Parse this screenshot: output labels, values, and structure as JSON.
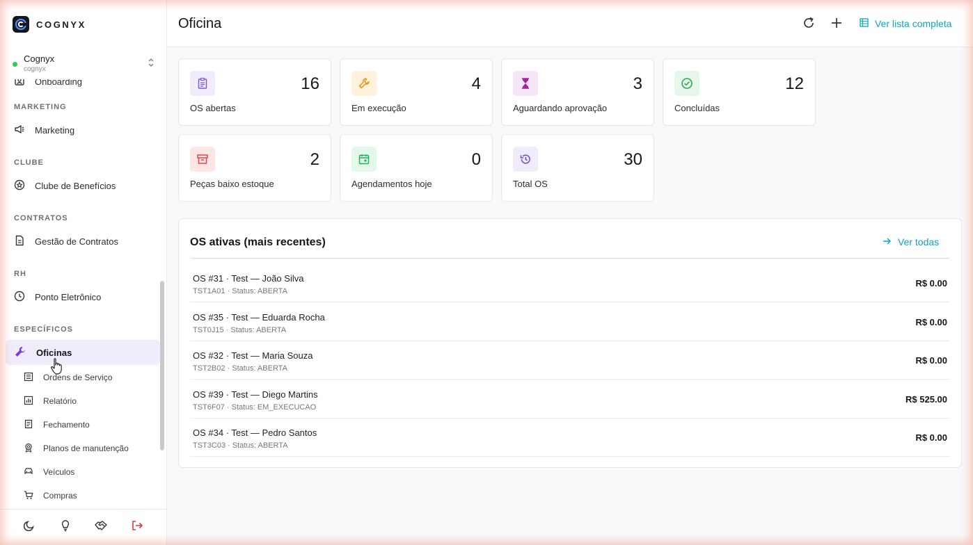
{
  "brand": {
    "name": "COGNYX"
  },
  "workspace": {
    "name": "Cognyx",
    "slug": "cognyx",
    "status_color": "#34c759"
  },
  "sidebar": {
    "partial_item": {
      "label": "Onboarding",
      "icon": "onboarding-icon"
    },
    "sections": [
      {
        "label": "MARKETING",
        "items": [
          {
            "label": "Marketing",
            "icon": "megaphone-icon"
          }
        ]
      },
      {
        "label": "CLUBE",
        "items": [
          {
            "label": "Clube de Benefícios",
            "icon": "star-badge-icon"
          }
        ]
      },
      {
        "label": "CONTRATOS",
        "items": [
          {
            "label": "Gestão de Contratos",
            "icon": "document-icon"
          }
        ]
      },
      {
        "label": "RH",
        "items": [
          {
            "label": "Ponto Eletrônico",
            "icon": "clock-icon"
          }
        ]
      },
      {
        "label": "ESPECÍFICOS",
        "items": [
          {
            "label": "Oficinas",
            "icon": "wrench-icon",
            "active": true
          }
        ]
      }
    ],
    "subitems": [
      {
        "label": "Ordens de Serviço",
        "icon": "list-icon"
      },
      {
        "label": "Relatório",
        "icon": "bar-chart-icon"
      },
      {
        "label": "Fechamento",
        "icon": "receipt-icon"
      },
      {
        "label": "Planos de manutenção",
        "icon": "award-icon"
      },
      {
        "label": "Veículos",
        "icon": "car-icon"
      },
      {
        "label": "Compras",
        "icon": "cart-icon"
      }
    ],
    "footer": [
      "moon-icon",
      "lightbulb-icon",
      "handshake-icon",
      "logout-icon"
    ]
  },
  "header": {
    "title": "Oficina",
    "actions": {
      "view_full_list": "Ver lista completa"
    }
  },
  "stats": [
    {
      "label": "OS abertas",
      "value": "16",
      "icon": "clipboard-icon",
      "bg": "#f0ebfd",
      "color": "#7c5cd6"
    },
    {
      "label": "Em execução",
      "value": "4",
      "icon": "wrench-icon",
      "bg": "#fff1dc",
      "color": "#e8941a"
    },
    {
      "label": "Aguardando aprovação",
      "value": "3",
      "icon": "hourglass-icon",
      "bg": "#f7e6f8",
      "color": "#a3259e"
    },
    {
      "label": "Concluídas",
      "value": "12",
      "icon": "check-circle-icon",
      "bg": "#e6f6ea",
      "color": "#2fa84f"
    },
    {
      "label": "Peças baixo estoque",
      "value": "2",
      "icon": "archive-icon",
      "bg": "#fde6e6",
      "color": "#e04848"
    },
    {
      "label": "Agendamentos hoje",
      "value": "0",
      "icon": "calendar-icon",
      "bg": "#e3f7ea",
      "color": "#22b35e"
    },
    {
      "label": "Total OS",
      "value": "30",
      "icon": "history-icon",
      "bg": "#efebfb",
      "color": "#6a55cf"
    }
  ],
  "recent": {
    "title": "OS ativas (mais recentes)",
    "view_all": "Ver todas",
    "rows": [
      {
        "title": "OS #31 · Test — João Silva",
        "sub": "TST1A01 · Status: ABERTA",
        "amount": "R$ 0.00"
      },
      {
        "title": "OS #35 · Test — Eduarda Rocha",
        "sub": "TST0J15 · Status: ABERTA",
        "amount": "R$ 0.00"
      },
      {
        "title": "OS #32 · Test — Maria Souza",
        "sub": "TST2B02 · Status: ABERTA",
        "amount": "R$ 0.00"
      },
      {
        "title": "OS #39 · Test — Diego Martins",
        "sub": "TST6F07 · Status: EM_EXECUCAO",
        "amount": "R$ 525.00"
      },
      {
        "title": "OS #34 · Test — Pedro Santos",
        "sub": "TST3C03 · Status: ABERTA",
        "amount": "R$ 0.00"
      }
    ]
  },
  "colors": {
    "accent": "#0ea5c4",
    "active_nav": "#f1ecfc",
    "brand_purple": "#7c3aed"
  }
}
